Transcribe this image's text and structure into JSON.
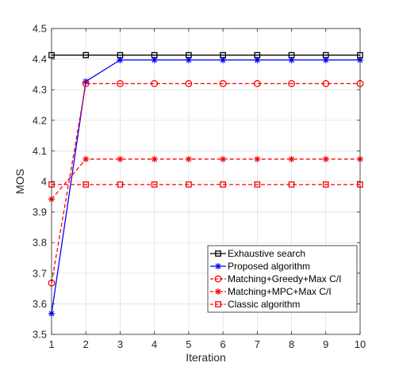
{
  "chart_data": {
    "type": "line",
    "title": "",
    "xlabel": "Iteration",
    "ylabel": "MOS",
    "x": [
      1,
      2,
      3,
      4,
      5,
      6,
      7,
      8,
      9,
      10
    ],
    "xlim": [
      1,
      10
    ],
    "ylim": [
      3.5,
      4.5
    ],
    "xticks": [
      "1",
      "2",
      "3",
      "4",
      "5",
      "6",
      "7",
      "8",
      "9",
      "10"
    ],
    "yticks": [
      "3.5",
      "3.6",
      "3.7",
      "3.8",
      "3.9",
      "4",
      "4.1",
      "4.2",
      "4.3",
      "4.4",
      "4.5"
    ],
    "grid": true,
    "legend_position": "bottom-right",
    "series": [
      {
        "name": "Exhaustive search",
        "color": "#000000",
        "dash": "solid",
        "marker": "square",
        "values": [
          4.413,
          4.413,
          4.413,
          4.413,
          4.413,
          4.413,
          4.413,
          4.413,
          4.413,
          4.413
        ]
      },
      {
        "name": "Proposed algorithm",
        "color": "#0000ff",
        "dash": "solid",
        "marker": "asterisk",
        "values": [
          3.568,
          4.327,
          4.397,
          4.397,
          4.397,
          4.397,
          4.397,
          4.397,
          4.397,
          4.397
        ]
      },
      {
        "name": "Matching+Greedy+Max C/I",
        "color": "#ff0000",
        "dash": "dashed",
        "marker": "circle",
        "values": [
          3.668,
          4.32,
          4.32,
          4.32,
          4.32,
          4.32,
          4.32,
          4.32,
          4.32,
          4.32
        ]
      },
      {
        "name": "Matching+MPC+Max C/I",
        "color": "#ff0000",
        "dash": "dashed",
        "marker": "asterisk",
        "values": [
          3.942,
          4.073,
          4.073,
          4.073,
          4.073,
          4.073,
          4.073,
          4.073,
          4.073,
          4.073
        ]
      },
      {
        "name": "Classic algorithm",
        "color": "#ff0000",
        "dash": "dashed",
        "marker": "square",
        "values": [
          3.99,
          3.99,
          3.99,
          3.99,
          3.99,
          3.99,
          3.99,
          3.99,
          3.99,
          3.99
        ]
      }
    ]
  }
}
